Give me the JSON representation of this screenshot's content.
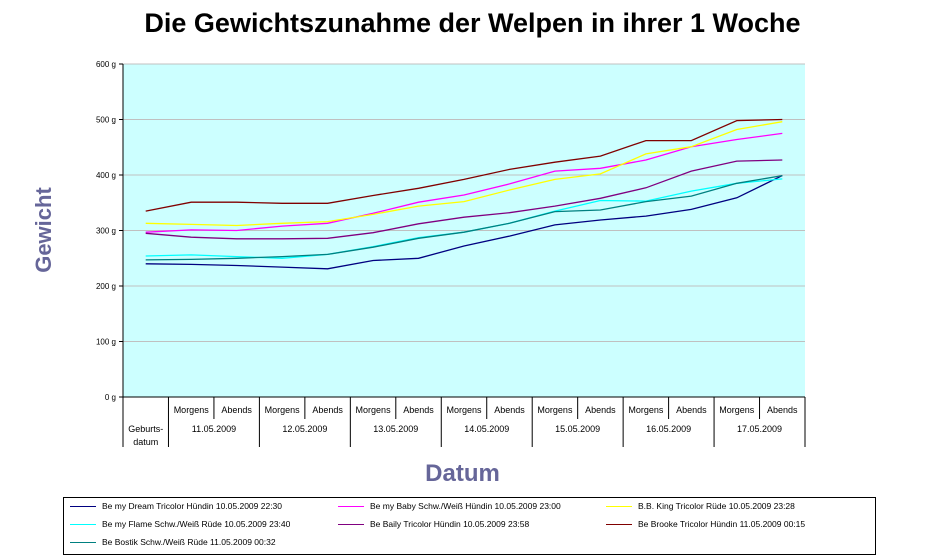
{
  "chart_data": {
    "type": "line",
    "title": "Die Gewichtszunahme der Welpen in ihrer 1 Woche",
    "xlabel": "Datum",
    "ylabel": "Gewicht",
    "ylim": [
      0,
      600
    ],
    "yticks": [
      0,
      100,
      200,
      300,
      400,
      500,
      600
    ],
    "ytick_labels": [
      "0 g",
      "100 g",
      "200 g",
      "300 g",
      "400 g",
      "500 g",
      "600 g"
    ],
    "grid": true,
    "legend_position": "bottom",
    "plot_background": "#CCFFFF",
    "categories": [
      "Geburtsdatum",
      "11.05.2009 Morgens",
      "11.05.2009 Abends",
      "12.05.2009 Morgens",
      "12.05.2009 Abends",
      "13.05.2009 Morgens",
      "13.05.2009 Abends",
      "14.05.2009 Morgens",
      "14.05.2009 Abends",
      "15.05.2009 Morgens",
      "15.05.2009 Abends",
      "16.05.2009 Morgens",
      "16.05.2009 Abends",
      "17.05.2009 Morgens",
      "17.05.2009 Abends"
    ],
    "category_groups": [
      {
        "label": "Geburts-\ndatum",
        "subs": [
          ""
        ]
      },
      {
        "label": "11.05.2009",
        "subs": [
          "Morgens",
          "Abends"
        ]
      },
      {
        "label": "12.05.2009",
        "subs": [
          "Morgens",
          "Abends"
        ]
      },
      {
        "label": "13.05.2009",
        "subs": [
          "Morgens",
          "Abends"
        ]
      },
      {
        "label": "14.05.2009",
        "subs": [
          "Morgens",
          "Abends"
        ]
      },
      {
        "label": "15.05.2009",
        "subs": [
          "Morgens",
          "Abends"
        ]
      },
      {
        "label": "16.05.2009",
        "subs": [
          "Morgens",
          "Abends"
        ]
      },
      {
        "label": "17.05.2009",
        "subs": [
          "Morgens",
          "Abends"
        ]
      }
    ],
    "series": [
      {
        "name": "Be my Dream Tricolor Hündin 10.05.2009 22:30",
        "color": "#000080",
        "values": [
          240,
          239,
          237,
          234,
          231,
          246,
          250,
          272,
          290,
          310,
          319,
          326,
          338,
          359,
          399
        ]
      },
      {
        "name": "Be my Baby Schw./Weiß Hündin 10.05.2009 23:00",
        "color": "#FF00FF",
        "values": [
          297,
          301,
          300,
          308,
          313,
          331,
          351,
          364,
          384,
          407,
          412,
          427,
          451,
          464,
          475
        ]
      },
      {
        "name": "B.B. King Tricolor Rüde 10.05.2009 23:28",
        "color": "#FFFF00",
        "values": [
          313,
          311,
          309,
          313,
          316,
          329,
          344,
          352,
          373,
          392,
          402,
          438,
          451,
          482,
          496
        ]
      },
      {
        "name": "Be my Flame Schw./Weiß Rüde 10.05.2009 23:40",
        "color": "#00FFFF",
        "values": [
          254,
          256,
          253,
          250,
          257,
          271,
          287,
          297,
          313,
          335,
          354,
          353,
          371,
          385,
          393
        ]
      },
      {
        "name": "Be Baily Tricolor Hündin 10.05.2009 23:58",
        "color": "#800080",
        "values": [
          295,
          288,
          285,
          285,
          286,
          296,
          312,
          324,
          332,
          344,
          358,
          377,
          407,
          425,
          427
        ]
      },
      {
        "name": "Be Brooke Tricolor Hündin 11.05.2009 00:15",
        "color": "#800000",
        "values": [
          335,
          351,
          351,
          349,
          349,
          363,
          376,
          392,
          410,
          423,
          434,
          462,
          462,
          498,
          500
        ]
      },
      {
        "name": "Be Bostik Schw./Weiß Rüde 11.05.2009 00:32",
        "color": "#008080",
        "values": [
          247,
          248,
          250,
          253,
          257,
          270,
          286,
          297,
          313,
          334,
          337,
          352,
          362,
          385,
          399
        ]
      }
    ]
  }
}
